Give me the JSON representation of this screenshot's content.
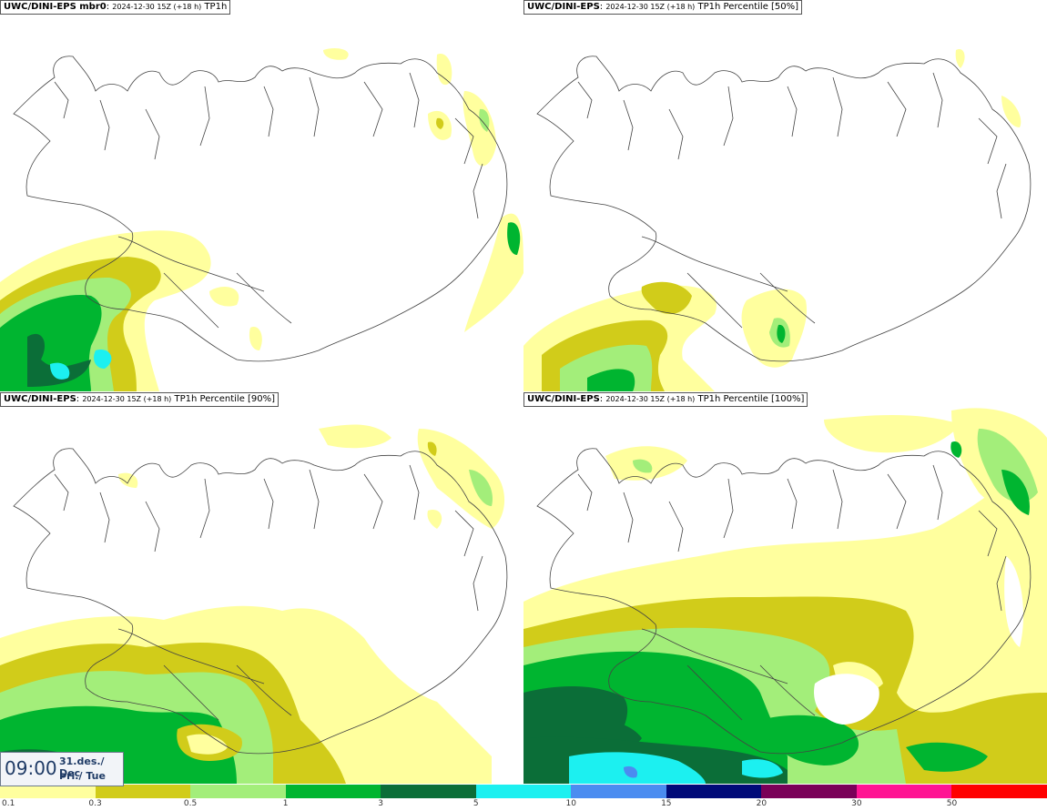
{
  "panels": [
    {
      "model": "UWC/DINI-EPS mbr0",
      "run": "2024-12-30 15Z (+18 h)",
      "product": "TP1h"
    },
    {
      "model": "UWC/DINI-EPS",
      "run": "2024-12-30 15Z (+18 h)",
      "product": "TP1h Percentile [50%]"
    },
    {
      "model": "UWC/DINI-EPS",
      "run": "2024-12-30 15Z (+18 h)",
      "product": "TP1h Percentile [90%]"
    },
    {
      "model": "UWC/DINI-EPS",
      "run": "2024-12-30 15Z (+18 h)",
      "product": "TP1h Percentile [100%]"
    }
  ],
  "valid_time": {
    "time": "09:00",
    "date": "31.des./ Dec",
    "weekday": "Þri./ Tue"
  },
  "legend": {
    "ticks": [
      "0.1",
      "0.3",
      "0.5",
      "1",
      "3",
      "5",
      "10",
      "15",
      "20",
      "30",
      "50"
    ],
    "colors": [
      "#ffff9e",
      "#d1cc1a",
      "#a3ee7a",
      "#00b530",
      "#0b6e38",
      "#1cf0f0",
      "#4b8cf0",
      "#000a78",
      "#7a0058",
      "#ff1493",
      "#ff0000"
    ]
  },
  "colors": {
    "c01": "#ffff9e",
    "c03": "#d1cc1a",
    "c05": "#a3ee7a",
    "c1": "#00b530",
    "c3": "#0b6e38",
    "c5": "#1cf0f0",
    "c10": "#4b8cf0"
  }
}
